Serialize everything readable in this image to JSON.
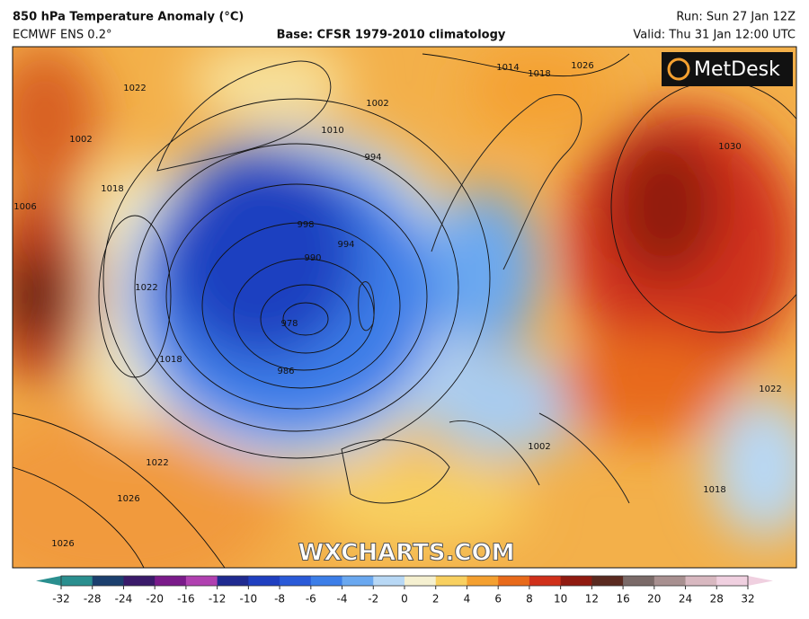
{
  "header": {
    "title": "850 hPa Temperature Anomaly (°C)",
    "model": "ECMWF ENS 0.2°",
    "base": "Base: CFSR 1979-2010 climatology",
    "run": "Run: Sun 27 Jan 12Z",
    "valid": "Valid: Thu 31 Jan 12:00 UTC"
  },
  "map": {
    "logo": "MetDesk",
    "watermark": "WXCHARTS.COM",
    "isobar_labels": [
      "1022",
      "1018",
      "1022",
      "1018",
      "1010",
      "1002",
      "994",
      "998",
      "994",
      "990",
      "978",
      "986",
      "1014",
      "1018",
      "1026",
      "1030",
      "1022",
      "1002",
      "1018",
      "1022",
      "1026",
      "1026",
      "1006",
      "1002"
    ]
  },
  "colorbar": {
    "ticks": [
      -32,
      -28,
      -24,
      -20,
      -16,
      -12,
      -10,
      -8,
      -6,
      -4,
      -2,
      0,
      2,
      4,
      6,
      8,
      10,
      12,
      16,
      20,
      24,
      28,
      32
    ],
    "colors": [
      "#2a8f8f",
      "#1b3f6e",
      "#3a1a6a",
      "#7a1a8a",
      "#b040b0",
      "#1f2a90",
      "#1f3fc0",
      "#2a5ad8",
      "#3c7ee8",
      "#6aa8f0",
      "#b8d8f5",
      "#f5f0d0",
      "#f8d060",
      "#f4a030",
      "#e86a1a",
      "#d0301a",
      "#901a10",
      "#5a2a20",
      "#7a6a68",
      "#a89090",
      "#d8b8c0",
      "#f0d0e0"
    ]
  }
}
